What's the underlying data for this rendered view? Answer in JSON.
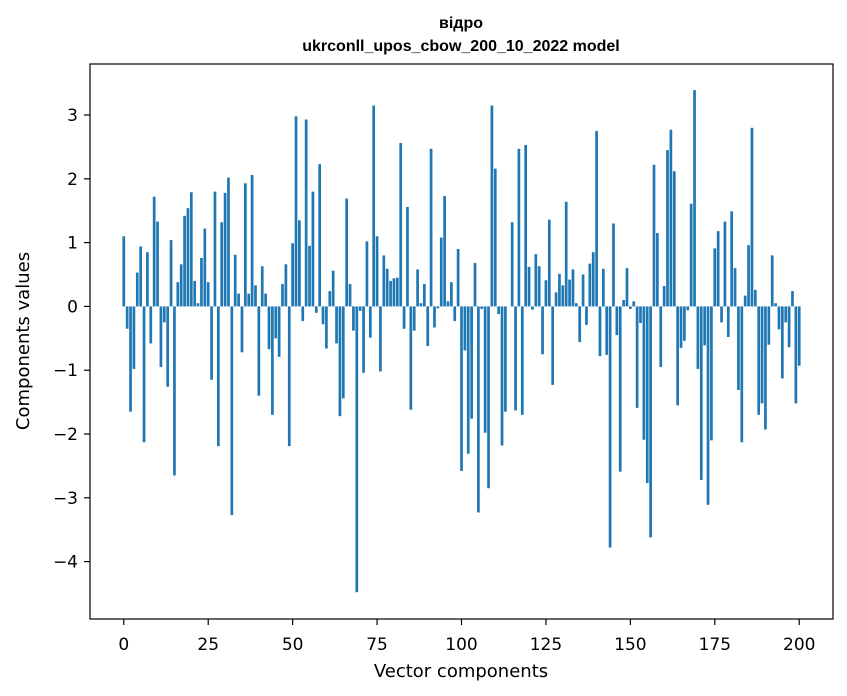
{
  "chart_data": {
    "type": "bar",
    "title_line1": "відро",
    "title_line2": "ukrconll_upos_cbow_200_10_2022 model",
    "xlabel": "Vector components",
    "ylabel": "Components values",
    "xlim": [
      -10,
      210
    ],
    "ylim": [
      -4.9,
      3.8
    ],
    "xticks": [
      0,
      25,
      50,
      75,
      100,
      125,
      150,
      175,
      200
    ],
    "yticks": [
      -4,
      -3,
      -2,
      -1,
      0,
      1,
      2,
      3
    ],
    "bar_color": "#1f77b4",
    "values": [
      1.1,
      -0.35,
      -1.65,
      -0.98,
      0.53,
      0.94,
      -2.13,
      0.85,
      -0.58,
      1.72,
      1.33,
      -0.95,
      -0.25,
      -1.26,
      1.04,
      -2.65,
      0.38,
      0.66,
      1.42,
      1.54,
      1.79,
      0.4,
      0.05,
      0.76,
      1.22,
      0.38,
      -1.15,
      1.8,
      -2.19,
      1.32,
      1.78,
      2.02,
      -3.27,
      0.81,
      0.2,
      -0.72,
      1.93,
      0.2,
      2.06,
      0.33,
      -1.4,
      0.63,
      0.2,
      -0.67,
      -1.7,
      -0.5,
      -0.79,
      0.35,
      0.66,
      -2.19,
      0.99,
      2.98,
      1.35,
      -0.23,
      2.93,
      0.95,
      1.8,
      -0.1,
      2.23,
      -0.28,
      -0.66,
      0.24,
      0.56,
      -0.58,
      -1.72,
      -1.44,
      1.69,
      0.35,
      -0.38,
      -4.48,
      -0.07,
      -1.04,
      1.02,
      -0.49,
      3.15,
      1.1,
      -1.02,
      0.8,
      0.59,
      0.4,
      0.44,
      0.45,
      2.56,
      -0.35,
      1.56,
      -1.62,
      -0.38,
      0.58,
      0.05,
      0.35,
      -0.62,
      2.47,
      -0.33,
      -0.03,
      1.08,
      1.73,
      0.08,
      0.38,
      -0.23,
      0.9,
      -2.58,
      -0.69,
      -2.31,
      -1.76,
      0.68,
      -3.23,
      -0.04,
      -1.98,
      -2.85,
      3.15,
      2.16,
      -0.12,
      -2.18,
      -1.65,
      0.0,
      1.32,
      -1.63,
      2.47,
      -1.7,
      2.53,
      0.62,
      -0.05,
      0.82,
      0.63,
      -0.75,
      0.41,
      1.36,
      -1.23,
      0.22,
      0.51,
      0.33,
      1.64,
      0.42,
      0.58,
      0.05,
      -0.56,
      0.5,
      -0.29,
      0.67,
      0.85,
      2.75,
      -0.78,
      0.59,
      -0.76,
      -3.78,
      1.3,
      -0.45,
      -2.59,
      0.1,
      0.6,
      -0.04,
      0.08,
      -1.59,
      -0.26,
      -2.09,
      -2.77,
      -3.62,
      2.22,
      1.15,
      -0.95,
      0.32,
      2.45,
      2.77,
      2.12,
      -1.55,
      -0.65,
      -0.54,
      -0.06,
      1.61,
      3.39,
      -0.98,
      -2.72,
      -0.61,
      -3.11,
      -2.1,
      0.91,
      1.18,
      -0.25,
      1.33,
      -0.48,
      1.49,
      0.6,
      -1.31,
      -2.13,
      0.17,
      0.96,
      2.8,
      0.26,
      -1.7,
      -1.52,
      -1.93,
      -0.6,
      0.8,
      0.05,
      -0.36,
      -1.13,
      -0.25,
      -0.64,
      0.24,
      -1.52,
      -0.93
    ]
  }
}
